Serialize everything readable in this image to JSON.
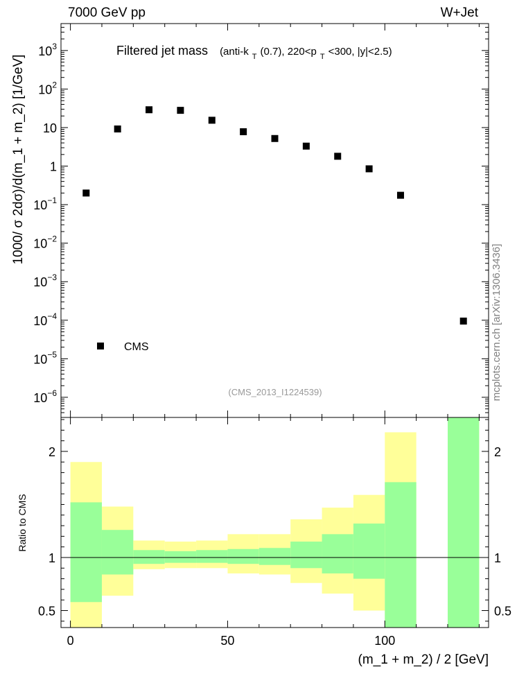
{
  "header": {
    "energy": "7000 GeV pp",
    "process": "W+Jet"
  },
  "side_label": "mcplots.cern.ch [arXiv:1306.3436]",
  "chart_data": [
    {
      "type": "scatter",
      "title": "Filtered jet mass",
      "subtitle_parts": {
        "open": "(anti-k",
        "k_sub": "T",
        "mid": "(0.7), 220<p",
        "p_sub": "T",
        "close": "<300, |y|<2.5)"
      },
      "ylabel": "1000/ σ 2dσ)/d(m_1 + m_2) [1/GeV]",
      "yscale": "log",
      "ylim": [
        3e-07,
        5000
      ],
      "xlim": [
        -3,
        133
      ],
      "y_ticks": [
        {
          "v": 1000,
          "label": "10",
          "exp": "3"
        },
        {
          "v": 100,
          "label": "10",
          "exp": "2"
        },
        {
          "v": 10,
          "label": "10",
          "exp": ""
        },
        {
          "v": 1,
          "label": "1",
          "exp": ""
        },
        {
          "v": 0.1,
          "label": "10",
          "exp": "−1"
        },
        {
          "v": 0.01,
          "label": "10",
          "exp": "−2"
        },
        {
          "v": 0.001,
          "label": "10",
          "exp": "−3"
        },
        {
          "v": 0.0001,
          "label": "10",
          "exp": "−4"
        },
        {
          "v": 1e-05,
          "label": "10",
          "exp": "−5"
        },
        {
          "v": 1e-06,
          "label": "10",
          "exp": "−6"
        }
      ],
      "series": [
        {
          "name": "CMS",
          "x": [
            5,
            15,
            25,
            35,
            45,
            55,
            65,
            75,
            85,
            95,
            105,
            125
          ],
          "values": [
            0.2,
            9.2,
            29,
            28,
            15.5,
            7.8,
            5.2,
            3.3,
            1.8,
            0.85,
            0.175,
            9.5e-05
          ]
        }
      ],
      "legend": "lower-left",
      "watermark": "(CMS_2013_I1224539)"
    },
    {
      "type": "area",
      "title": "",
      "xlabel": "(m_1 + m_2) / 2 [GeV]",
      "ylabel": "Ratio to CMS",
      "xlim": [
        -3,
        133
      ],
      "ylim": [
        0.34,
        2.32
      ],
      "x_ticks": [
        {
          "v": 0,
          "label": "0"
        },
        {
          "v": 50,
          "label": "50"
        },
        {
          "v": 100,
          "label": "100"
        }
      ],
      "y_ticks": [
        {
          "v": 0.5,
          "label": "0.5"
        },
        {
          "v": 1,
          "label": "1"
        },
        {
          "v": 2,
          "label": "2"
        }
      ],
      "bins": [
        {
          "lo": 0,
          "hi": 10,
          "stat_lo": 0.58,
          "stat_hi": 1.52,
          "tot_lo": 0.34,
          "tot_hi": 1.9
        },
        {
          "lo": 10,
          "hi": 20,
          "stat_lo": 0.84,
          "stat_hi": 1.26,
          "tot_lo": 0.64,
          "tot_hi": 1.48
        },
        {
          "lo": 20,
          "hi": 30,
          "stat_lo": 0.94,
          "stat_hi": 1.07,
          "tot_lo": 0.89,
          "tot_hi": 1.16
        },
        {
          "lo": 30,
          "hi": 40,
          "stat_lo": 0.95,
          "stat_hi": 1.06,
          "tot_lo": 0.9,
          "tot_hi": 1.15
        },
        {
          "lo": 40,
          "hi": 50,
          "stat_lo": 0.95,
          "stat_hi": 1.07,
          "tot_lo": 0.9,
          "tot_hi": 1.16
        },
        {
          "lo": 50,
          "hi": 60,
          "stat_lo": 0.94,
          "stat_hi": 1.08,
          "tot_lo": 0.85,
          "tot_hi": 1.22
        },
        {
          "lo": 60,
          "hi": 70,
          "stat_lo": 0.93,
          "stat_hi": 1.09,
          "tot_lo": 0.84,
          "tot_hi": 1.22
        },
        {
          "lo": 70,
          "hi": 80,
          "stat_lo": 0.9,
          "stat_hi": 1.15,
          "tot_lo": 0.76,
          "tot_hi": 1.36
        },
        {
          "lo": 80,
          "hi": 90,
          "stat_lo": 0.85,
          "stat_hi": 1.22,
          "tot_lo": 0.66,
          "tot_hi": 1.47
        },
        {
          "lo": 90,
          "hi": 100,
          "stat_lo": 0.8,
          "stat_hi": 1.32,
          "tot_lo": 0.5,
          "tot_hi": 1.59
        },
        {
          "lo": 100,
          "hi": 110,
          "stat_lo": 0.34,
          "stat_hi": 1.71,
          "tot_lo": 0.34,
          "tot_hi": 2.18
        },
        {
          "lo": 120,
          "hi": 130,
          "stat_lo": 0.34,
          "stat_hi": 2.32,
          "tot_lo": 0.34,
          "tot_hi": 2.32
        }
      ],
      "reference": 1
    }
  ],
  "colors": {
    "stat": "#99ff99",
    "total": "#ffff99",
    "marker": "#000000"
  }
}
